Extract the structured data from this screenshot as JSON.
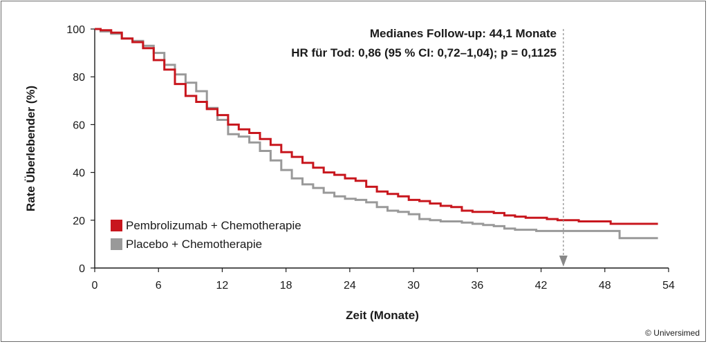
{
  "chart_data": {
    "type": "line",
    "xlabel": "Zeit (Monate)",
    "ylabel": "Rate Überlebender (%)",
    "xlim": [
      0,
      54
    ],
    "ylim": [
      0,
      100
    ],
    "x_ticks": [
      "0",
      "6",
      "12",
      "18",
      "24",
      "30",
      "36",
      "42",
      "48",
      "54"
    ],
    "y_ticks": [
      "0",
      "20",
      "40",
      "60",
      "80",
      "100"
    ],
    "grid": false,
    "legend_position": "bottom-left",
    "annotations": {
      "line1": "Medianes Follow-up: 44,1 Monate",
      "line2": "HR für Tod: 0,86 (95 % CI: 0,72–1,04); p = 0,1125",
      "marker_x": 44.1
    },
    "series": [
      {
        "name": "Pembrolizumab + Chemotherapie",
        "color": "#c8161d",
        "points": [
          [
            0,
            100
          ],
          [
            1,
            99.5
          ],
          [
            2,
            98.5
          ],
          [
            3,
            96
          ],
          [
            4,
            94.5
          ],
          [
            5,
            92
          ],
          [
            6,
            87
          ],
          [
            7,
            83
          ],
          [
            8,
            77
          ],
          [
            9,
            72
          ],
          [
            10,
            69.5
          ],
          [
            11,
            66.5
          ],
          [
            12,
            64
          ],
          [
            13,
            60
          ],
          [
            14,
            58
          ],
          [
            15,
            56.5
          ],
          [
            16,
            54
          ],
          [
            17,
            51.5
          ],
          [
            18,
            48.5
          ],
          [
            19,
            46.5
          ],
          [
            20,
            44
          ],
          [
            21,
            42
          ],
          [
            22,
            40
          ],
          [
            23,
            39
          ],
          [
            24,
            37.5
          ],
          [
            25,
            36.5
          ],
          [
            26,
            34
          ],
          [
            27,
            32
          ],
          [
            28,
            31
          ],
          [
            29,
            30
          ],
          [
            30,
            28.5
          ],
          [
            31,
            28
          ],
          [
            32,
            27
          ],
          [
            33,
            26
          ],
          [
            34,
            25.5
          ],
          [
            35,
            24
          ],
          [
            36,
            23.5
          ],
          [
            37,
            23.5
          ],
          [
            38,
            23
          ],
          [
            39,
            22
          ],
          [
            40,
            21.5
          ],
          [
            41,
            21
          ],
          [
            42,
            21
          ],
          [
            43,
            20.5
          ],
          [
            44,
            20
          ],
          [
            45,
            20
          ],
          [
            46,
            19.5
          ],
          [
            47,
            19.5
          ],
          [
            48,
            19.5
          ],
          [
            49,
            18.5
          ],
          [
            50,
            18.5
          ],
          [
            51,
            18.5
          ],
          [
            52,
            18.5
          ],
          [
            53,
            18.5
          ]
        ]
      },
      {
        "name": "Placebo + Chemotherapie",
        "color": "#999999",
        "points": [
          [
            0,
            100
          ],
          [
            1,
            99
          ],
          [
            2,
            98
          ],
          [
            3,
            96
          ],
          [
            4,
            95
          ],
          [
            5,
            93
          ],
          [
            6,
            90
          ],
          [
            7,
            85
          ],
          [
            8,
            81
          ],
          [
            9,
            77.5
          ],
          [
            10,
            74
          ],
          [
            11,
            67
          ],
          [
            12,
            62
          ],
          [
            13,
            56
          ],
          [
            14,
            55
          ],
          [
            15,
            52.5
          ],
          [
            16,
            49
          ],
          [
            17,
            45
          ],
          [
            18,
            41
          ],
          [
            19,
            37.5
          ],
          [
            20,
            35
          ],
          [
            21,
            33.5
          ],
          [
            22,
            31.5
          ],
          [
            23,
            30
          ],
          [
            24,
            29
          ],
          [
            25,
            28.5
          ],
          [
            26,
            27.5
          ],
          [
            27,
            25.5
          ],
          [
            28,
            24
          ],
          [
            29,
            23.5
          ],
          [
            30,
            22.5
          ],
          [
            31,
            20.5
          ],
          [
            32,
            20
          ],
          [
            33,
            19.5
          ],
          [
            34,
            19.5
          ],
          [
            35,
            19
          ],
          [
            36,
            18.5
          ],
          [
            37,
            18
          ],
          [
            38,
            17.5
          ],
          [
            39,
            16.5
          ],
          [
            40,
            16
          ],
          [
            41,
            16
          ],
          [
            42,
            15.5
          ],
          [
            43,
            15.5
          ],
          [
            44,
            15.5
          ],
          [
            45,
            15.5
          ],
          [
            46,
            15.5
          ],
          [
            47,
            15.5
          ],
          [
            48,
            15.5
          ],
          [
            49,
            15.5
          ],
          [
            49.7,
            12.5
          ],
          [
            51,
            12.5
          ],
          [
            53,
            12.5
          ]
        ]
      }
    ]
  },
  "credit": "© Universimed"
}
